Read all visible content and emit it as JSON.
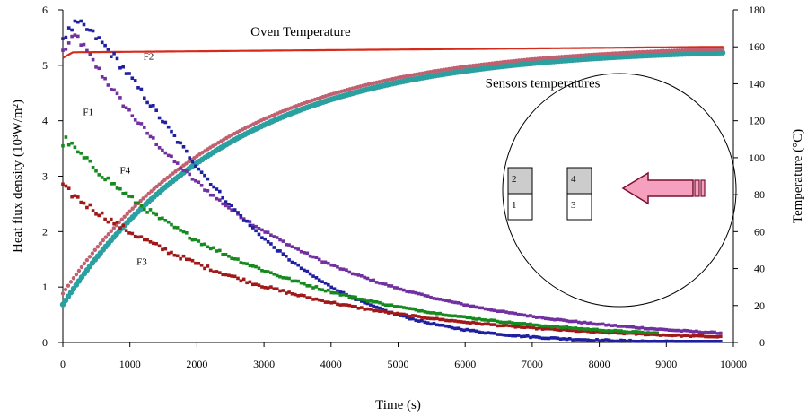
{
  "chart_data": {
    "type": "scatter",
    "xlabel": "Time (s)",
    "ylabel_left": "Heat flux density (10³W/m²)",
    "ylabel_right": "Temperature (°C)",
    "xlim": [
      0,
      10000
    ],
    "ylim_left": [
      0,
      6
    ],
    "ylim_right": [
      0,
      180
    ],
    "x_ticks": [
      0,
      1000,
      2000,
      3000,
      4000,
      5000,
      6000,
      7000,
      8000,
      9000,
      10000
    ],
    "y_left_ticks": [
      0,
      1,
      2,
      3,
      4,
      5,
      6
    ],
    "y_right_ticks": [
      0,
      20,
      40,
      60,
      80,
      100,
      120,
      140,
      160,
      180
    ],
    "grid": false,
    "series": [
      {
        "name": "F1",
        "axis": "left",
        "color": "#7030a0",
        "start": 5.25,
        "peak_x": 200,
        "peak": 5.55,
        "tau": 2900,
        "noise": 0.07,
        "x_end": 9850
      },
      {
        "name": "F2",
        "axis": "left",
        "color": "#1f1f9f",
        "start": 5.5,
        "peak_x": 200,
        "peak": 5.75,
        "tau": 2500,
        "decay_power": 1.45,
        "noise": 0.08,
        "x_end": 9850
      },
      {
        "name": "F3",
        "axis": "left",
        "color": "#a01818",
        "start": 2.8,
        "peak_x": 0,
        "peak": 2.8,
        "tau": 3100,
        "noise": 0.07,
        "x_end": 9850
      },
      {
        "name": "F4",
        "axis": "left",
        "color": "#158a1e",
        "start": 3.6,
        "peak_x": 50,
        "peak": 3.65,
        "tau": 3000,
        "noise": 0.07,
        "x_end": 8900
      }
    ],
    "temperature_series": [
      {
        "name": "Oven Temperature",
        "axis": "right",
        "color": "#d62a1a",
        "start": 157,
        "end": 160
      },
      {
        "name": "Sensors temperatures",
        "axis": "right",
        "colors": [
          "#c06070",
          "#2aa0a0"
        ],
        "start": 22,
        "end": 161,
        "tau": 2500
      }
    ],
    "annotations": [
      {
        "text": "Oven Temperature",
        "x": 2800,
        "y_right": 166
      },
      {
        "text": "Sensors temperatures",
        "x": 6300,
        "y_right": 138
      },
      {
        "text": "F2",
        "x": 1200,
        "y": 5.1
      },
      {
        "text": "F1",
        "x": 300,
        "y": 4.1
      },
      {
        "text": "F4",
        "x": 850,
        "y": 3.05
      },
      {
        "text": "F3",
        "x": 1100,
        "y": 1.4
      }
    ],
    "inset_labels": [
      "1",
      "2",
      "3",
      "4"
    ]
  }
}
